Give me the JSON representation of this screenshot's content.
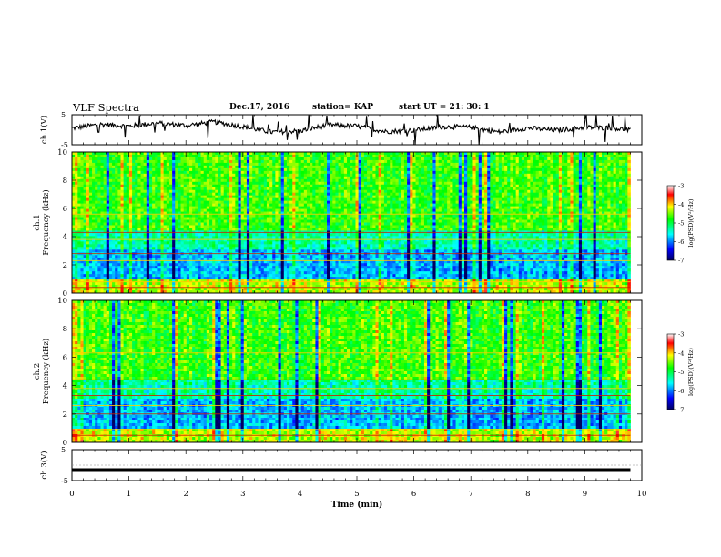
{
  "header": {
    "title": "VLF Spectra",
    "date": "Dec.17, 2016",
    "station": "station= KAP",
    "start": "start  UT =   21: 30: 1"
  },
  "chart_data": [
    {
      "type": "line",
      "panel": "ch1-waveform",
      "ylabel": "ch.1(V)",
      "yticks": [
        "5",
        "-5"
      ],
      "ylim": [
        -5,
        5
      ],
      "xlim": [
        0,
        10
      ],
      "x_end": 9.8,
      "color": "#000000",
      "series": [
        {
          "x": [
            0,
            0.5,
            1,
            1.5,
            2,
            2.5,
            3,
            3.5,
            4,
            4.5,
            5,
            5.5,
            6,
            6.5,
            7,
            7.5,
            8,
            8.5,
            9,
            9.5,
            9.8
          ],
          "y": [
            0.5,
            1.8,
            1.2,
            2.2,
            1.4,
            2.6,
            1.0,
            -0.8,
            -0.4,
            1.6,
            1.2,
            -0.6,
            -0.2,
            1.0,
            0.8,
            -0.8,
            0.6,
            -0.2,
            0.8,
            0.6,
            -0.2
          ]
        }
      ]
    },
    {
      "type": "heatmap",
      "panel": "ch1-spectrogram",
      "ylabel": "ch.1",
      "ylabel2": "Frequency (kHz)",
      "yticks": [
        0,
        2,
        4,
        6,
        8,
        10
      ],
      "ylim": [
        0,
        10
      ],
      "xlim": [
        0,
        10
      ],
      "x_end": 9.8,
      "horizontal_lines_khz": [
        0.4,
        0.8,
        1.0,
        2.3,
        2.8,
        3.8,
        4.3,
        5.6
      ],
      "colorbar": {
        "label": "log(PSD)(V²/Hz)",
        "ticks": [
          -3,
          -4,
          -5,
          -6,
          -7
        ],
        "range": [
          -7,
          -3
        ]
      }
    },
    {
      "type": "heatmap",
      "panel": "ch2-spectrogram",
      "ylabel": "ch.2",
      "ylabel2": "Frequency (kHz)",
      "yticks": [
        0,
        2,
        4,
        6,
        8,
        10
      ],
      "ylim": [
        0,
        10
      ],
      "xlim": [
        0,
        10
      ],
      "x_end": 9.8,
      "horizontal_lines_khz": [
        0.5,
        0.9,
        2.0,
        2.6,
        3.3,
        3.8,
        4.4,
        6.3
      ],
      "colorbar": {
        "label": "log(PSD)(V²/Hz)",
        "ticks": [
          -3,
          -4,
          -5,
          -6,
          -7
        ],
        "range": [
          -7,
          -3
        ]
      }
    },
    {
      "type": "line",
      "panel": "ch3-waveform",
      "ylabel": "ch.3(V)",
      "yticks": [
        "5",
        "-5"
      ],
      "ylim": [
        -5,
        5
      ],
      "xlim": [
        0,
        10
      ],
      "x_end": 9.8,
      "xticks": [
        "0",
        "1",
        "2",
        "3",
        "4",
        "5",
        "6",
        "7",
        "8",
        "9",
        "10"
      ],
      "xlabel": "Time (min)",
      "series": [
        {
          "x": [
            0,
            9.8
          ],
          "y": [
            -1.6,
            -1.6
          ]
        }
      ]
    }
  ]
}
